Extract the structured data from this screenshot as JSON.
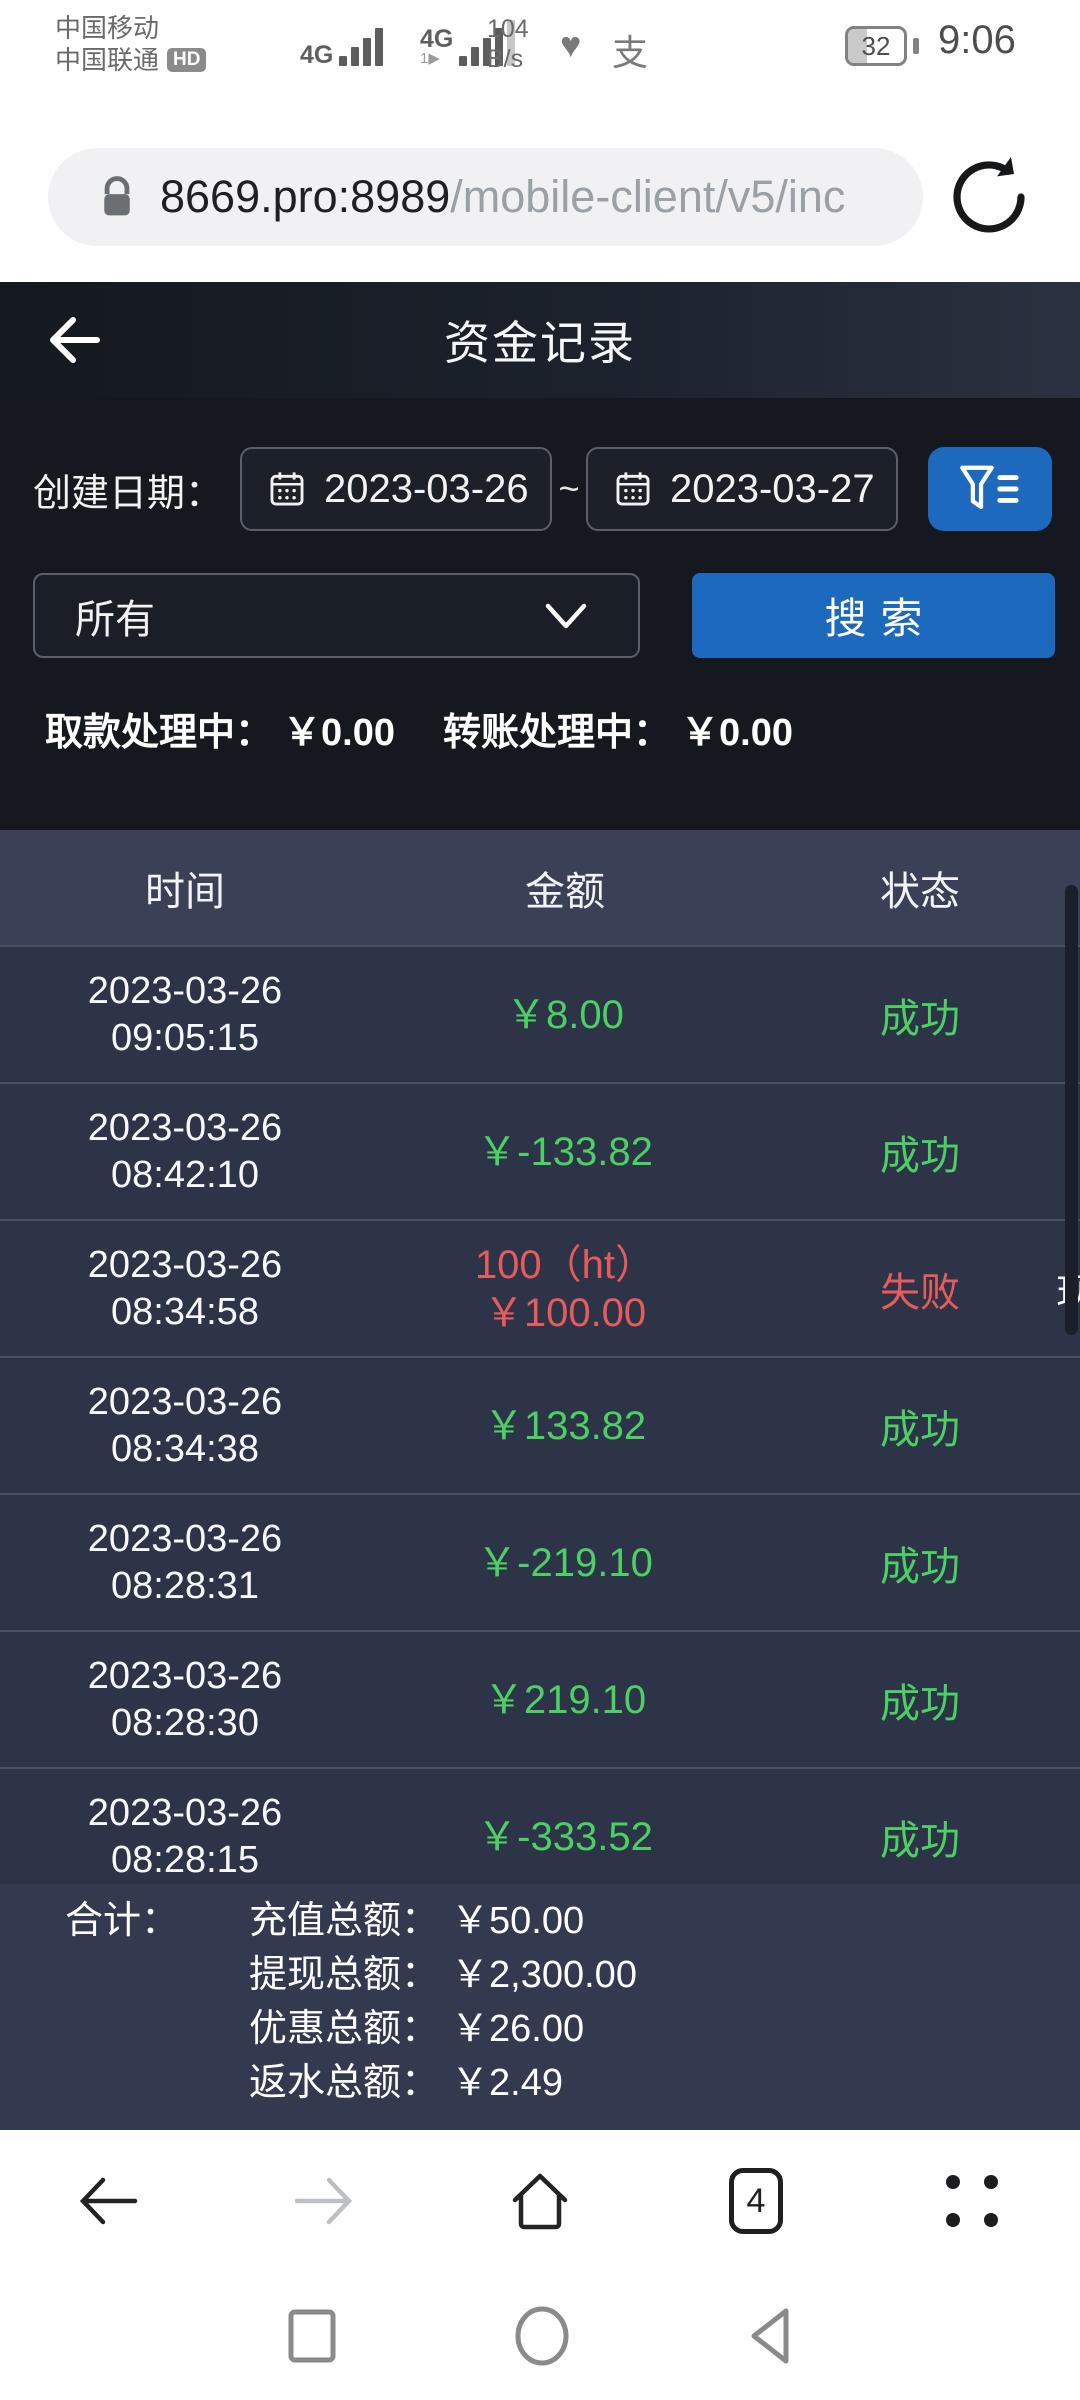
{
  "colors": {
    "accent_blue": "#1d69be",
    "success_green": "#4ccf63",
    "danger_red": "#e65c5c"
  },
  "status_bar": {
    "carrier_line1": "中国移动",
    "carrier_line2": "中国联通",
    "hd_badge": "HD",
    "network_badge1": "4G",
    "network_badge2": "4G",
    "sim2_sub": "1▶",
    "speed_line1": "104",
    "speed_line2": "B/s",
    "icon1": "♥",
    "icon2": "支",
    "battery_level": "32",
    "time": "9:06"
  },
  "url_bar": {
    "domain": "8669.pro:8989",
    "path": "/mobile-client/v5/inc"
  },
  "app_header": {
    "title": "资金记录"
  },
  "filters": {
    "date_label": "创建日期：",
    "date_from": "2023-03-26",
    "date_separator": "~",
    "date_to": "2023-03-27",
    "type_dropdown_value": "所有",
    "search_label": "搜索",
    "withdraw_processing_label": "取款处理中：",
    "withdraw_processing_value": "￥0.00",
    "transfer_processing_label": "转账处理中：",
    "transfer_processing_value": "￥0.00"
  },
  "table": {
    "headers": [
      "时间",
      "金额",
      "状态"
    ],
    "rows": [
      {
        "date": "2023-03-26",
        "time": "09:05:15",
        "amounts": [
          "￥8.00"
        ],
        "status": "成功",
        "color": "green",
        "extra": ""
      },
      {
        "date": "2023-03-26",
        "time": "08:42:10",
        "amounts": [
          "￥-133.82"
        ],
        "status": "成功",
        "color": "green",
        "extra": ""
      },
      {
        "date": "2023-03-26",
        "time": "08:34:58",
        "amounts": [
          "100（ht）",
          "￥100.00"
        ],
        "status": "失败",
        "color": "red",
        "extra": "现"
      },
      {
        "date": "2023-03-26",
        "time": "08:34:38",
        "amounts": [
          "￥133.82"
        ],
        "status": "成功",
        "color": "green",
        "extra": ""
      },
      {
        "date": "2023-03-26",
        "time": "08:28:31",
        "amounts": [
          "￥-219.10"
        ],
        "status": "成功",
        "color": "green",
        "extra": ""
      },
      {
        "date": "2023-03-26",
        "time": "08:28:30",
        "amounts": [
          "￥219.10"
        ],
        "status": "成功",
        "color": "green",
        "extra": ""
      },
      {
        "date": "2023-03-26",
        "time": "08:28:15",
        "amounts": [
          "￥-333.52"
        ],
        "status": "成功",
        "color": "green",
        "extra": ""
      }
    ]
  },
  "summary": {
    "label": "合计：",
    "items": [
      {
        "label": "充值总额：",
        "value": "￥50.00"
      },
      {
        "label": "提现总额：",
        "value": "￥2,300.00"
      },
      {
        "label": "优惠总额：",
        "value": "￥26.00"
      },
      {
        "label": "返水总额：",
        "value": "￥2.49"
      }
    ]
  },
  "browser_nav": {
    "tab_count": "4"
  }
}
